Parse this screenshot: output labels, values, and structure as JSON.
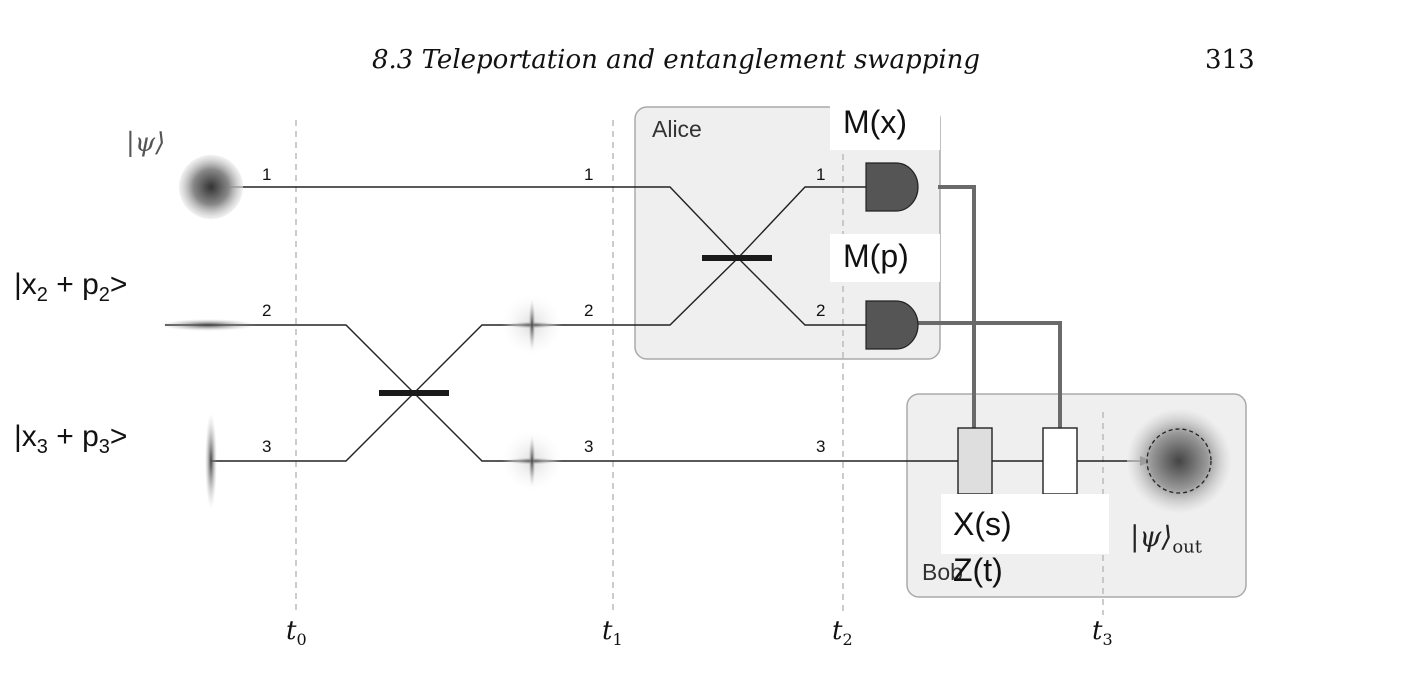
{
  "header": {
    "title": "8.3  Teleportation and entanglement swapping",
    "page_number": "313"
  },
  "boxes": {
    "alice": "Alice",
    "bob": "Bob"
  },
  "states": {
    "input": "|ψ⟩",
    "output": "|ψ⟩",
    "output_sub": "out",
    "mode2": {
      "base": "|x",
      "sub1": "2",
      "mid": " + p",
      "sub2": "2",
      "end": ">"
    },
    "mode3": {
      "base": "|x",
      "sub1": "3",
      "mid": " + p",
      "sub2": "3",
      "end": ">"
    }
  },
  "measurements": {
    "m1": "M(x)",
    "m2": "M(p)"
  },
  "corrections": {
    "c1": "X(s)",
    "c2": "Z(t)"
  },
  "mode_numbers": {
    "one": "1",
    "two": "2",
    "three": "3"
  },
  "times": [
    {
      "t": "t",
      "sub": "0"
    },
    {
      "t": "t",
      "sub": "1"
    },
    {
      "t": "t",
      "sub": "2"
    },
    {
      "t": "t",
      "sub": "3"
    }
  ]
}
